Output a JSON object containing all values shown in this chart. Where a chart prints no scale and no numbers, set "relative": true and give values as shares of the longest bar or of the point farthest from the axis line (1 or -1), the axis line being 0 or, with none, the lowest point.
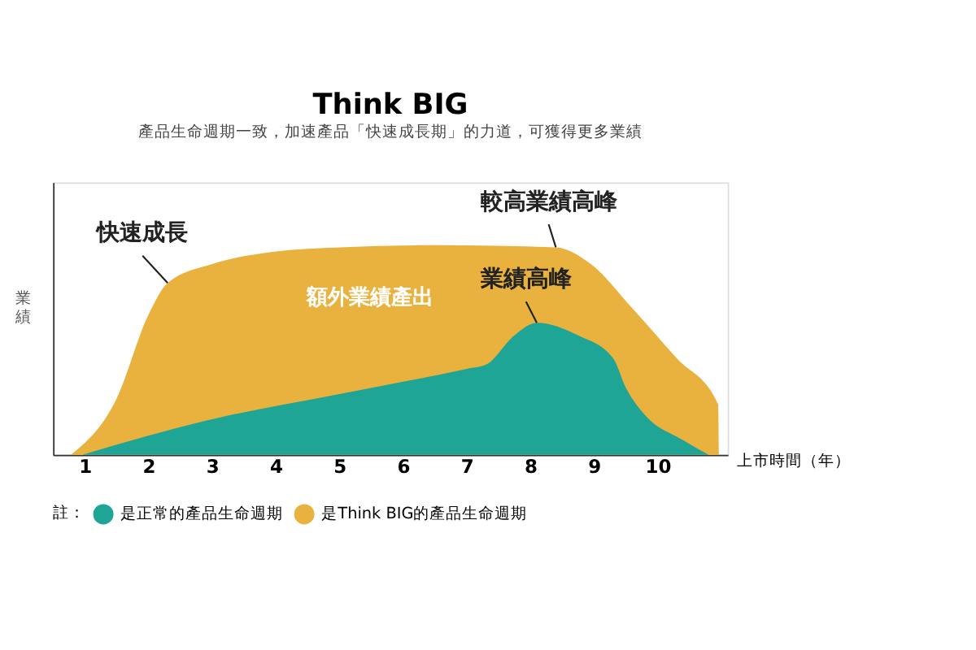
{
  "chart_data": {
    "type": "area",
    "title": "Think BIG",
    "subtitle": "產品生命週期一致，加速產品「快速成長期」的力道，可獲得更多業績",
    "xlabel": "上市時間（年）",
    "ylabel": "業績",
    "legend_title": "註：",
    "relative": true,
    "xlim": [
      0.5,
      11.1
    ],
    "xticks": [
      1,
      2,
      3,
      4,
      5,
      6,
      7,
      8,
      9,
      10
    ],
    "series": [
      {
        "name": "是Think BIG的產品生命週期",
        "color": "#e9b23f",
        "x": [
          0.78,
          1.5,
          2.0,
          2.3,
          3.0,
          4.0,
          5.0,
          6.5,
          8.4,
          8.95,
          9.6,
          10.3,
          10.95,
          10.96
        ],
        "values": [
          0,
          0.27,
          0.67,
          0.82,
          0.91,
          0.97,
          0.99,
          1,
          0.99,
          0.91,
          0.7,
          0.46,
          0.24,
          0
        ]
      },
      {
        "name": "是正常的產品生命週期",
        "color": "#1fa595",
        "x": [
          0.96,
          3.0,
          5.0,
          7.0,
          7.3,
          7.75,
          8.1,
          8.75,
          9.3,
          9.5,
          9.8,
          10.4,
          10.8
        ],
        "values": [
          0,
          0.17,
          0.29,
          0.41,
          0.43,
          0.57,
          0.63,
          0.57,
          0.46,
          0.32,
          0.19,
          0.07,
          0
        ]
      }
    ],
    "annotations": [
      {
        "text": "快速成長",
        "x": 2.3,
        "y": 0.82
      },
      {
        "text": "較高業績高峰",
        "x": 8.4,
        "y": 0.99
      },
      {
        "text": "業績高峰",
        "x": 8.1,
        "y": 0.63
      },
      "額外業績產出"
    ],
    "legend": "bottom",
    "tick_labels": "x",
    "grid": false
  }
}
